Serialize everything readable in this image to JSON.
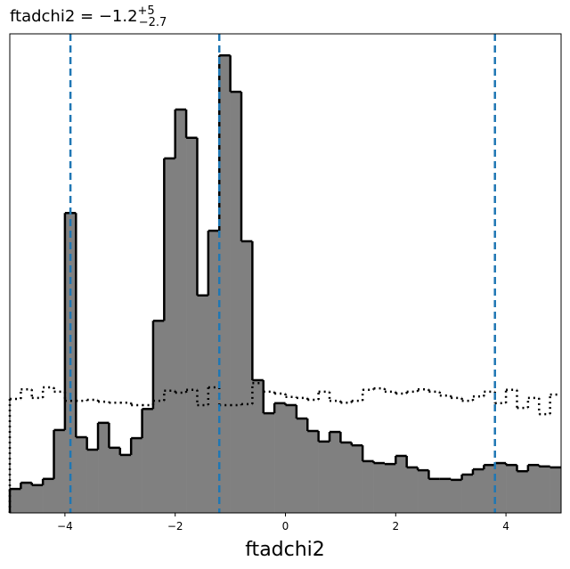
{
  "chart_data": {
    "type": "histogram",
    "title": "ftadchi2 = −1.2",
    "title_sup": "+5",
    "title_sub": "−2.7",
    "xlabel": "ftadchi2",
    "bins": [
      -5,
      -4.8,
      -4.6,
      -4.4,
      -4.2,
      -4,
      -3.8,
      -3.6,
      -3.4,
      -3.2,
      -3,
      -2.8,
      -2.6,
      -2.4,
      -2.2,
      -2,
      -1.8,
      -1.6,
      -1.4,
      -1.2,
      -1,
      -0.8,
      -0.6,
      -0.4,
      -0.2,
      0,
      0.2,
      0.4,
      0.6,
      0.8,
      1,
      1.2,
      1.4,
      1.6,
      1.8,
      2,
      2.2,
      2.4,
      2.6,
      2.8,
      3,
      3.2,
      3.4,
      3.6,
      3.8,
      4,
      4.2,
      4.4,
      4.6,
      4.8,
      5
    ],
    "series": [
      {
        "color": "#808080",
        "style": "filled",
        "values": [
          5.0,
          6.3,
          5.8,
          7.1,
          17.3,
          62.6,
          15.8,
          13.2,
          18.8,
          13.6,
          12.1,
          15.6,
          21.7,
          40.1,
          74.0,
          84.2,
          78.3,
          45.4,
          58.9,
          95.5,
          87.9,
          56.7,
          27.7,
          20.8,
          22.9,
          22.5,
          19.7,
          17.1,
          14.9,
          16.9,
          14.7,
          14.1,
          10.8,
          10.4,
          10.2,
          11.9,
          9.5,
          8.9,
          7.1,
          7.1,
          6.9,
          8.0,
          9.1,
          10.0,
          10.4,
          10.0,
          8.7,
          10.0,
          9.7,
          9.5
        ]
      },
      {
        "color": "#000000",
        "style": "dotted",
        "values": [
          23.8,
          25.8,
          24.0,
          26.2,
          25.3,
          23.4,
          23.4,
          23.6,
          23.2,
          23.0,
          23.0,
          22.5,
          22.5,
          23.4,
          25.5,
          25.1,
          25.7,
          22.5,
          26.2,
          22.5,
          22.5,
          22.7,
          27.1,
          25.3,
          24.9,
          24.2,
          24.0,
          23.6,
          25.3,
          23.4,
          23.0,
          23.4,
          25.7,
          26.0,
          25.3,
          24.9,
          25.3,
          25.8,
          25.3,
          24.5,
          24.0,
          23.4,
          24.3,
          25.3,
          22.9,
          25.7,
          21.9,
          24.0,
          20.6,
          24.7
        ]
      }
    ],
    "vlines": [
      -3.9,
      -1.2,
      3.8
    ],
    "vline_color": "#1f77b4",
    "xlim": [
      -5,
      5
    ],
    "ylim": [
      0,
      100
    ],
    "xticks": [
      {
        "value": -4,
        "label": "−4"
      },
      {
        "value": -2,
        "label": "−2"
      },
      0,
      2,
      4
    ]
  }
}
